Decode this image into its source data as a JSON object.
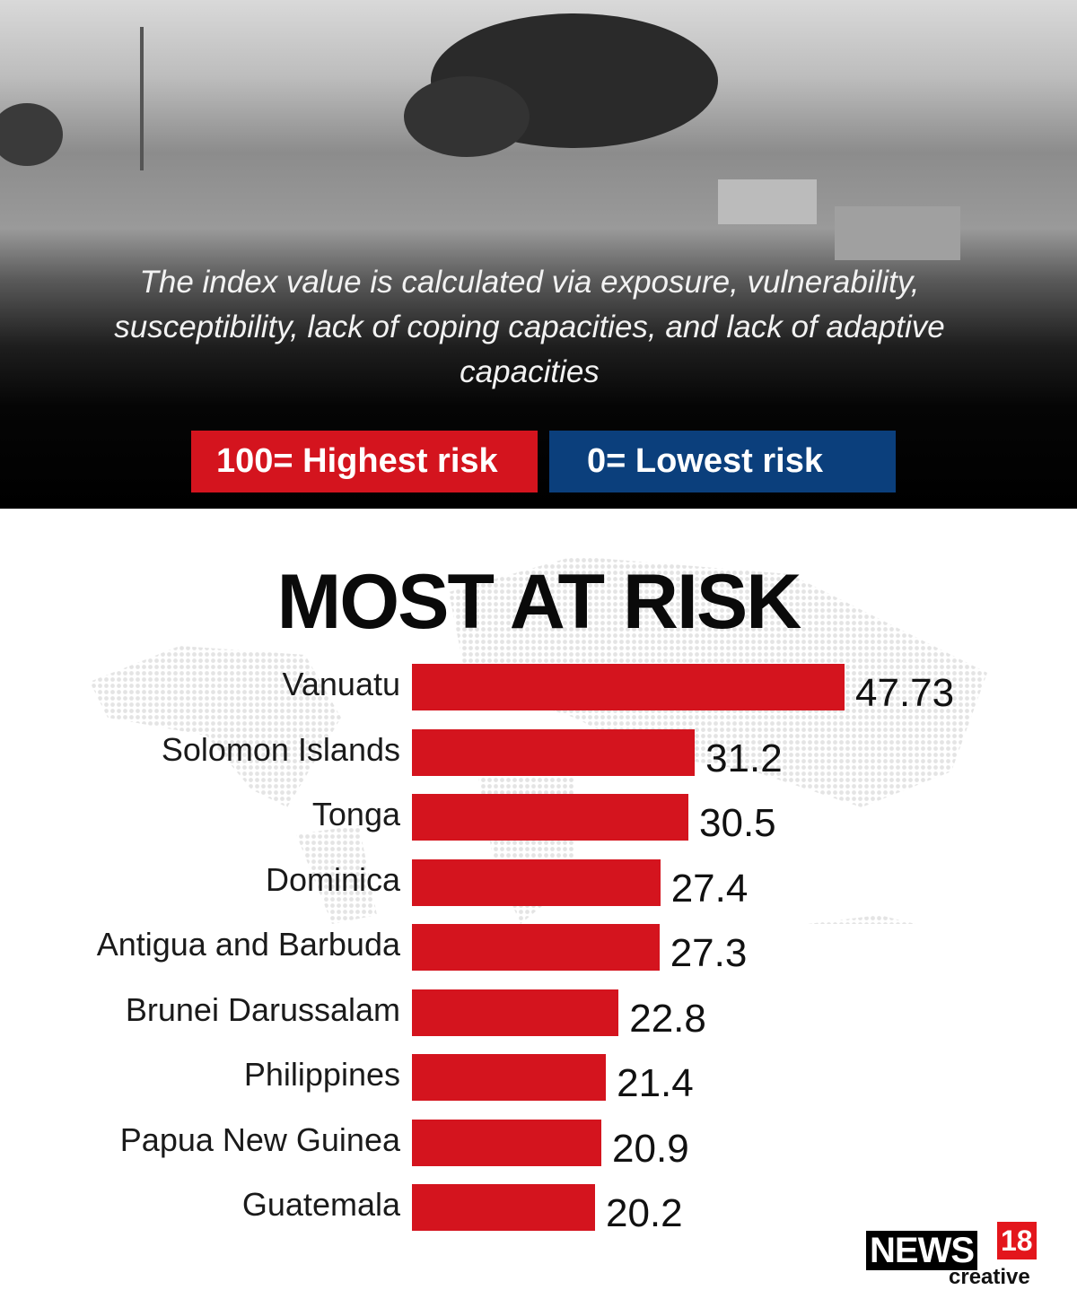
{
  "header": {
    "subtitle": "The index value is calculated via exposure, vulnerability, susceptibility, lack of coping capacities, and lack of adaptive capacities",
    "legend_high": "100= Highest risk",
    "legend_low": "0= Lowest risk"
  },
  "colors": {
    "bar": "#d4141e",
    "high": "#d4141e",
    "low": "#0b3f7c"
  },
  "logo": {
    "news": "NEWS",
    "number": "18",
    "sub": "creative"
  },
  "chart_data": {
    "type": "bar",
    "orientation": "horizontal",
    "title": "MOST AT RISK",
    "categories": [
      "Vanuatu",
      "Solomon Islands",
      "Tonga",
      "Dominica",
      "Antigua and Barbuda",
      "Brunei Darussalam",
      "Philippines",
      "Papua New Guinea",
      "Guatemala"
    ],
    "values": [
      47.73,
      31.2,
      30.5,
      27.4,
      27.3,
      22.8,
      21.4,
      20.9,
      20.2
    ],
    "labels": [
      "47.73",
      "31.2",
      "30.5",
      "27.4",
      "27.3",
      "22.8",
      "21.4",
      "20.9",
      "20.2"
    ],
    "xlim": [
      0,
      100
    ],
    "grid": false
  }
}
